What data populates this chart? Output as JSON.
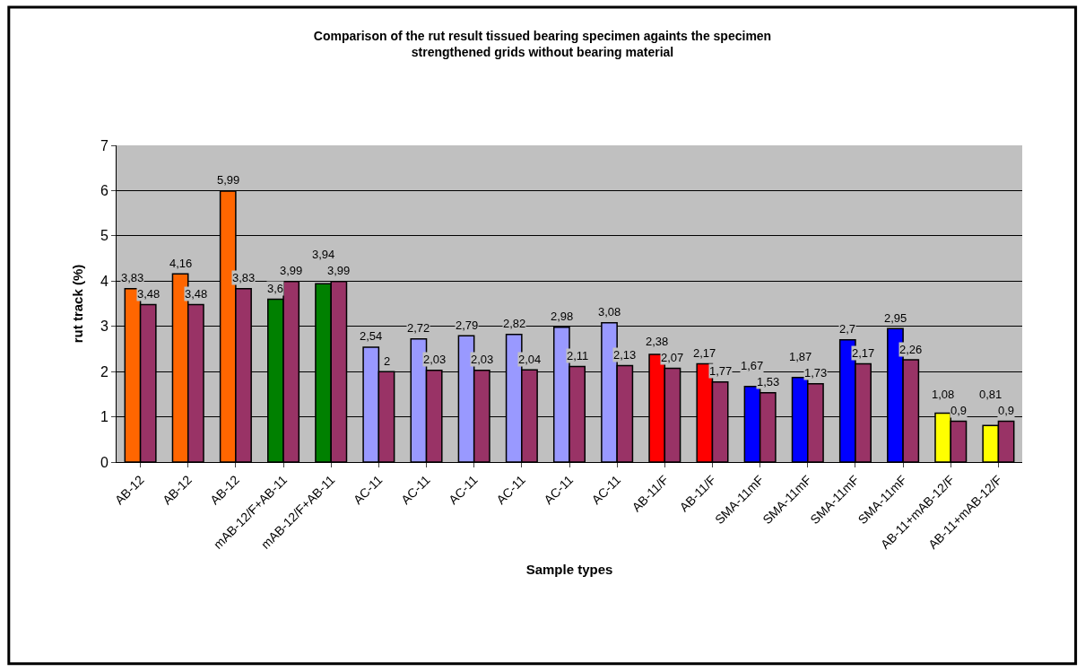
{
  "chart_data": {
    "type": "bar",
    "title": "Comparison of the rut result tissued bearing specimen againts the specimen strengthened grids without bearing material",
    "xlabel": "Sample types",
    "ylabel": "rut track (%)",
    "categories": [
      "AB-12",
      "AB-12",
      "AB-12",
      "mAB-12/F+AB-11",
      "mAB-12/F+AB-11",
      "AC-11",
      "AC-11",
      "AC-11",
      "AC-11",
      "AC-11",
      "AC-11",
      "AB-11/F",
      "AB-11/F",
      "SMA-11mF",
      "SMA-11mF",
      "SMA-11mF",
      "SMA-11mF",
      "AB-11+mAB-12/F",
      "AB-11+mAB-12/F"
    ],
    "series": [
      {
        "colors": [
          "#ff6600",
          "#ff6600",
          "#ff6600",
          "#008000",
          "#008000",
          "#9999ff",
          "#9999ff",
          "#9999ff",
          "#9999ff",
          "#9999ff",
          "#9999ff",
          "#ff0000",
          "#ff0000",
          "#0000ff",
          "#0000ff",
          "#0000ff",
          "#0000ff",
          "#ffff00",
          "#ffff00"
        ],
        "values": [
          3.83,
          4.16,
          5.99,
          3.6,
          3.94,
          2.54,
          2.72,
          2.79,
          2.82,
          2.98,
          3.08,
          2.38,
          2.17,
          1.67,
          1.87,
          2.7,
          2.95,
          1.08,
          0.81
        ],
        "value_labels": [
          "3,83",
          "4,16",
          "5,99",
          "3,6",
          "3,94",
          "2,54",
          "2,72",
          "2,79",
          "2,82",
          "2,98",
          "3,08",
          "2,38",
          "2,17",
          "1,67",
          "1,87",
          "2,7",
          "2,95",
          "1,08",
          "0,81"
        ]
      },
      {
        "color": "#993366",
        "values": [
          3.48,
          3.48,
          3.83,
          3.99,
          3.99,
          2,
          2.03,
          2.03,
          2.04,
          2.11,
          2.13,
          2.07,
          1.77,
          1.53,
          1.73,
          2.17,
          2.26,
          0.9,
          0.9
        ],
        "value_labels": [
          "3,48",
          "3,48",
          "3,83",
          "3,99",
          "3,99",
          "2",
          "2,03",
          "2,03",
          "2,04",
          "2,11",
          "2,13",
          "2,07",
          "1,77",
          "1,53",
          "1,73",
          "2,17",
          "2,26",
          "0,9",
          "0,9"
        ]
      }
    ],
    "ylim": [
      0,
      7
    ],
    "yticks": [
      0,
      1,
      2,
      3,
      4,
      5,
      6,
      7
    ],
    "grid": "y",
    "legend": false
  }
}
